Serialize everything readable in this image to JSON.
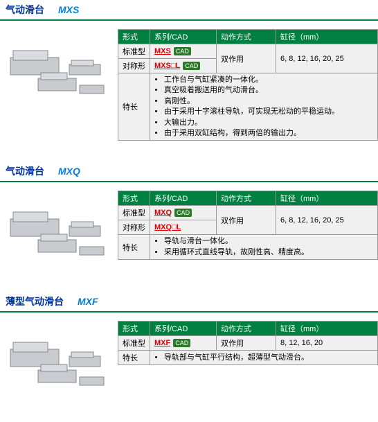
{
  "colors": {
    "header_bg": "#008040",
    "header_text": "#ffffff",
    "title_cn": "#003399",
    "title_model": "#0080dd",
    "model_link": "#dd0000",
    "cell_bg": "#f0f0f0",
    "border": "#999999"
  },
  "columns": {
    "type": "形式",
    "series": "系列/CAD",
    "action": "动作方式",
    "bore": "缸径（mm）"
  },
  "sections": [
    {
      "title_cn": "气动滑台",
      "title_model": "MXS",
      "rows": [
        {
          "type": "标准型",
          "model": "MXS",
          "cad": true,
          "action": "双作用",
          "bore": "6, 8, 12, 16, 20, 25",
          "action_rowspan": 2,
          "bore_rowspan": 2
        },
        {
          "type": "对称形",
          "model": "MXS□L",
          "cad": true
        }
      ],
      "feature_label": "特长",
      "features": [
        "工作台与气缸紧凑的一体化。",
        "真空吸着搬送用的气动滑台。",
        "高刚性。",
        "由于采用十字滚柱导轨，可实现无松动的平稳运动。",
        "大输出力。",
        "由于采用双缸结构，得到两倍的输出力。"
      ]
    },
    {
      "title_cn": "气动滑台",
      "title_model": "MXQ",
      "rows": [
        {
          "type": "标准型",
          "model": "MXQ",
          "cad": true,
          "action": "双作用",
          "bore": "6, 8, 12, 16, 20, 25",
          "action_rowspan": 2,
          "bore_rowspan": 2
        },
        {
          "type": "对称形",
          "model": "MXQ□L",
          "cad": false
        }
      ],
      "feature_label": "特长",
      "features": [
        "导轨与滑台一体化。",
        "采用循环式直线导轨，故刚性高、精度高。"
      ]
    },
    {
      "title_cn": "薄型气动滑台",
      "title_model": "MXF",
      "rows": [
        {
          "type": "标准型",
          "model": "MXF",
          "cad": true,
          "action": "双作用",
          "bore": "8, 12, 16, 20"
        }
      ],
      "feature_label": "特长",
      "features": [
        "导轨部与气缸平行结构，超薄型气动滑台。"
      ]
    }
  ]
}
